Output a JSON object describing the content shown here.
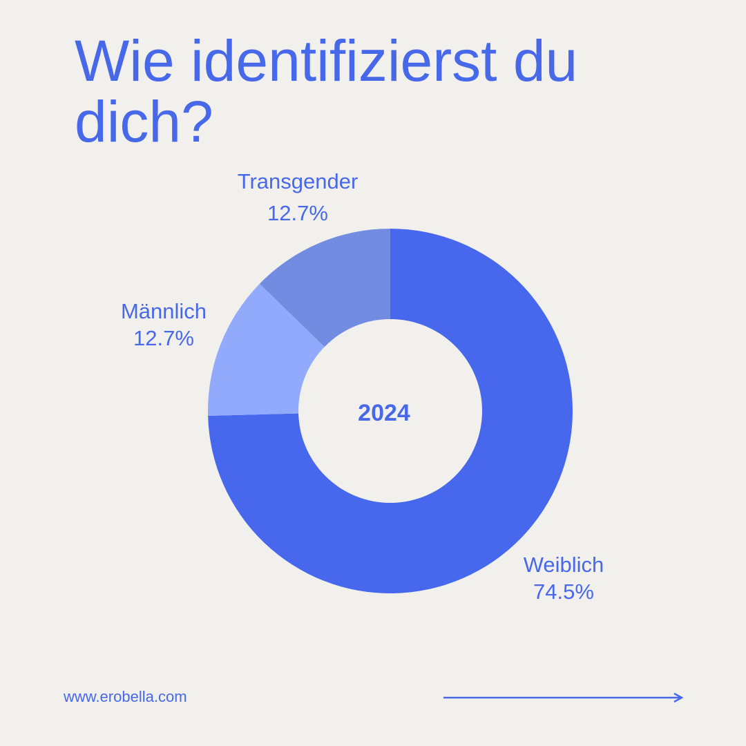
{
  "title": "Wie identifizierst du dich?",
  "colors": {
    "background": "#f1f0ed",
    "text": "#4868ea"
  },
  "chart_data": {
    "type": "pie",
    "variant": "donut",
    "center_label": "2024",
    "slices": [
      {
        "label": "Weiblich",
        "value": 74.5,
        "value_label": "74.5%",
        "color": "#4768ec"
      },
      {
        "label": "Männlich",
        "value": 12.7,
        "value_label": "12.7%",
        "color": "#92aafb"
      },
      {
        "label": "Transgender",
        "value": 12.7,
        "value_label": "12.7%",
        "color": "#728ce1"
      }
    ]
  },
  "footer": {
    "url": "www.erobella.com",
    "arrow_icon": "arrow-right-icon"
  }
}
